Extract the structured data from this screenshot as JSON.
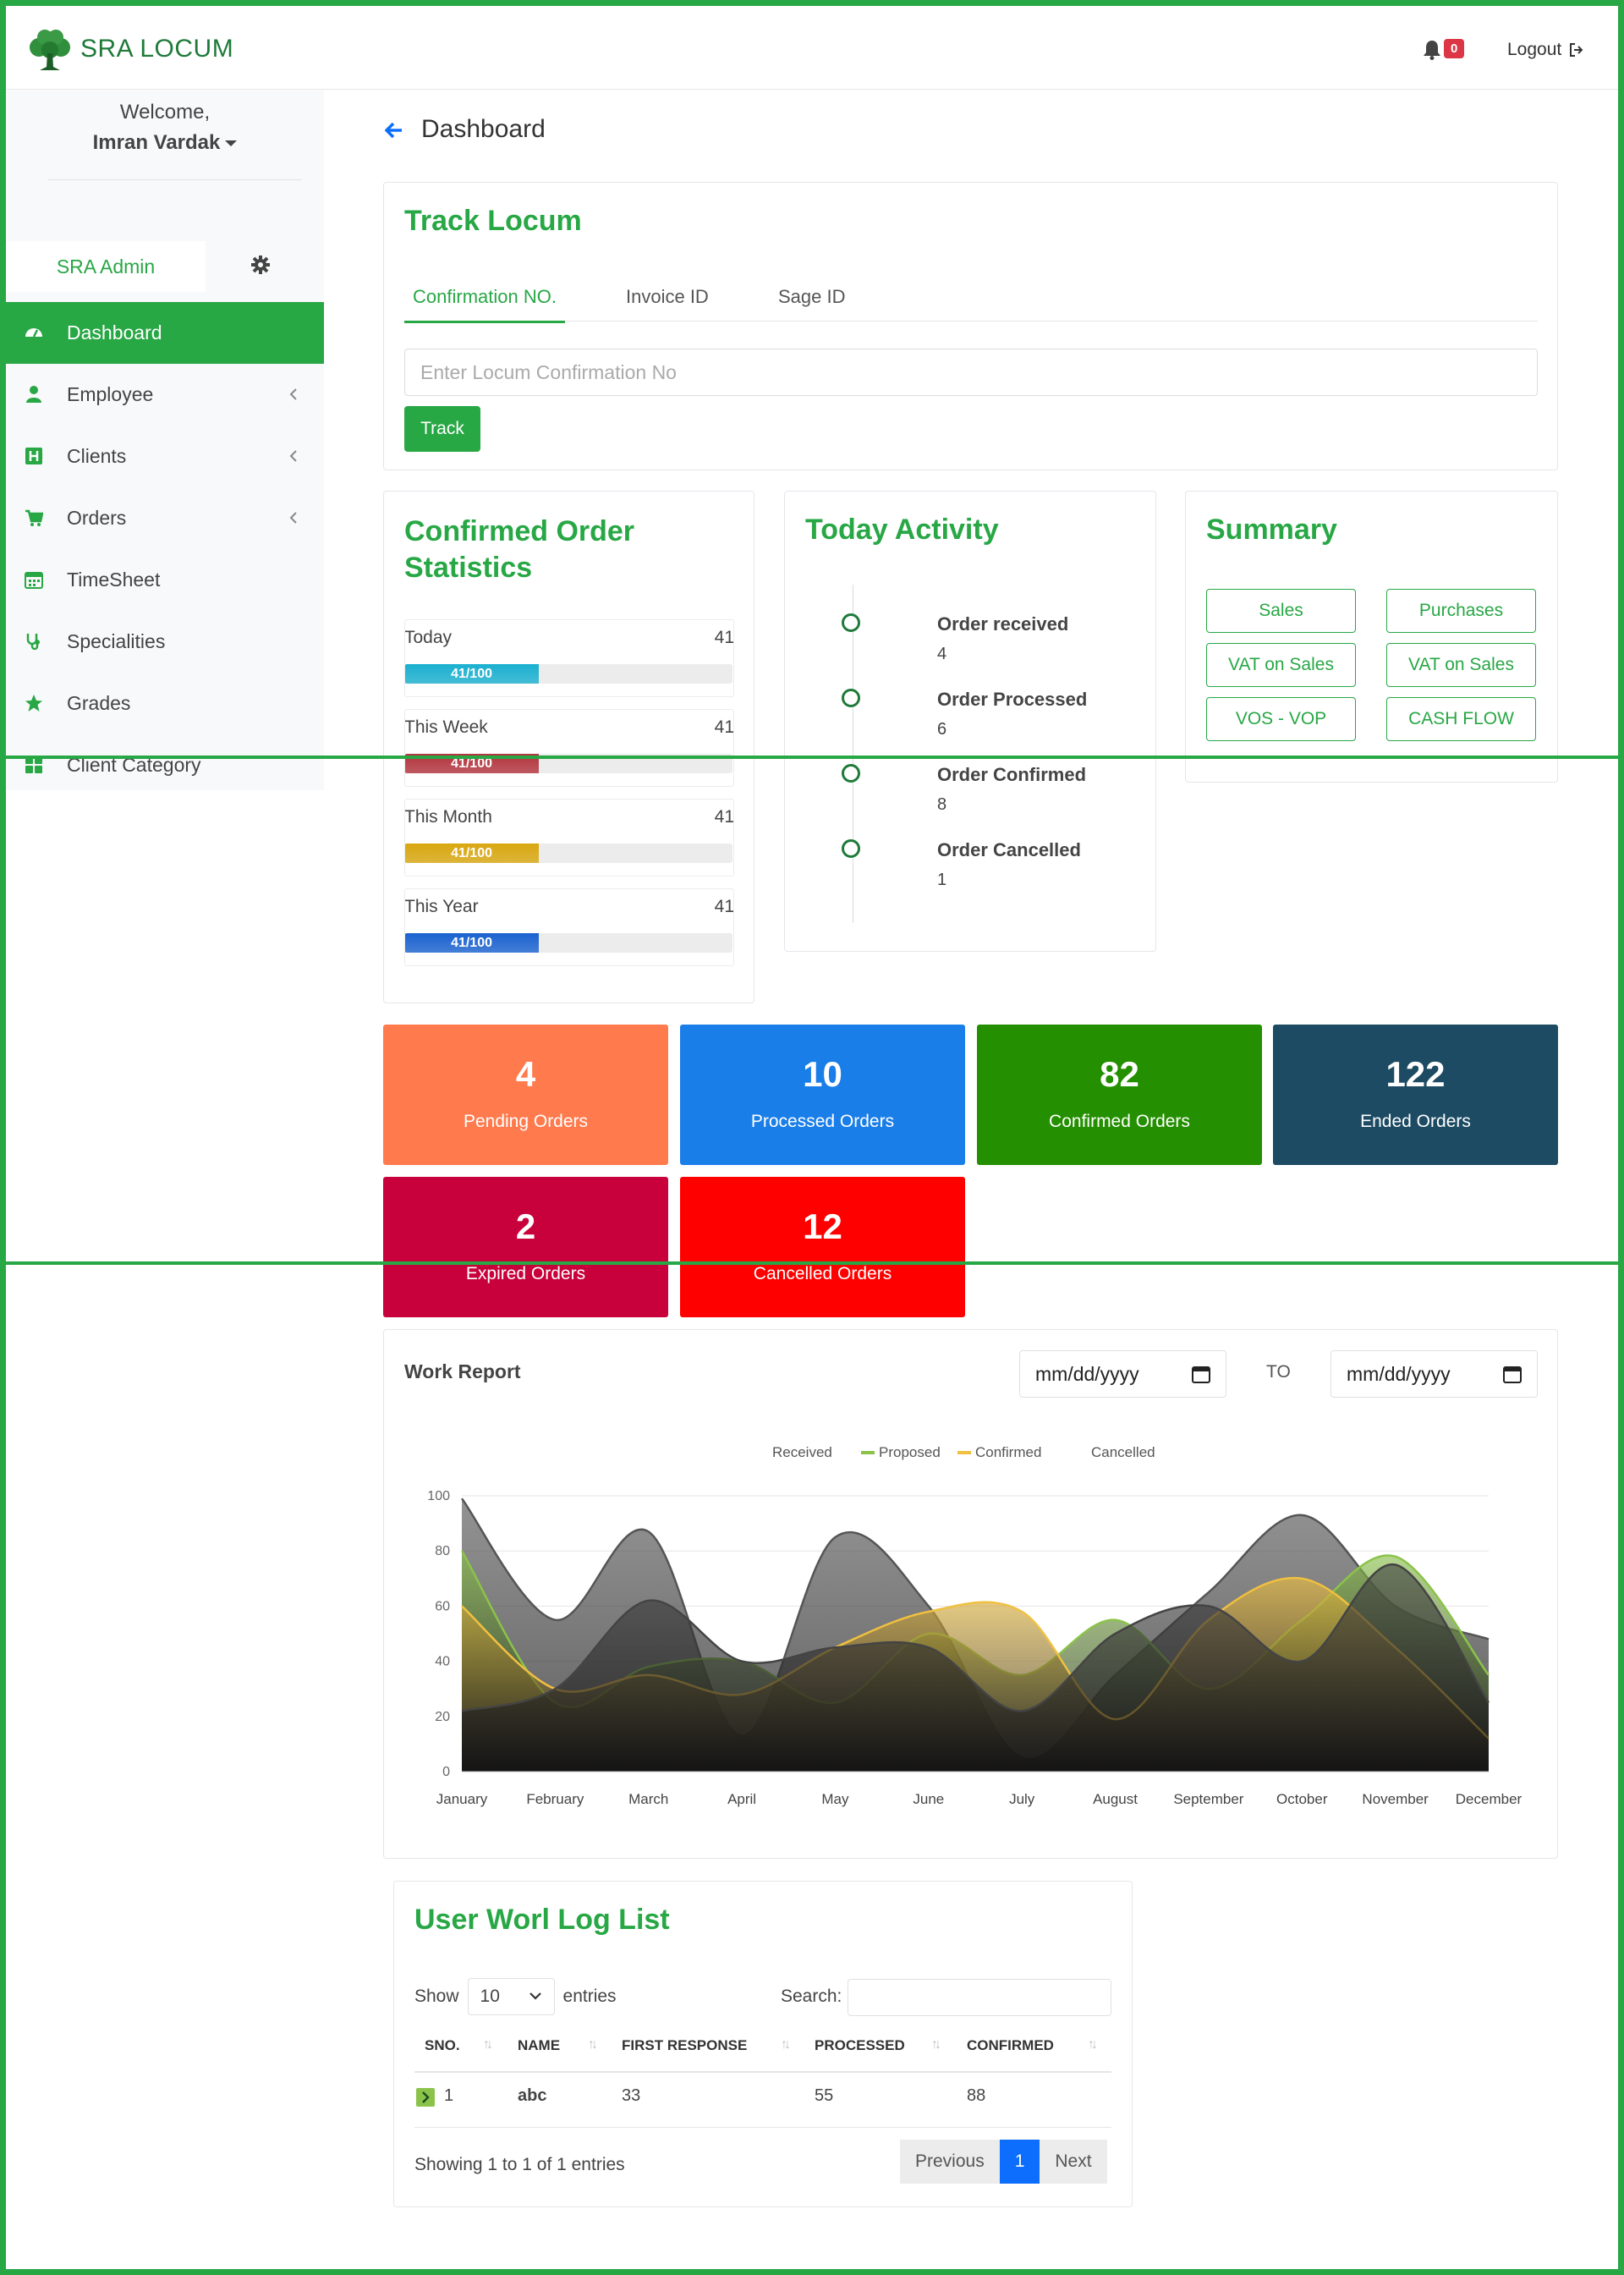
{
  "header": {
    "brand": "SRA LOCUM",
    "notification_count": "0",
    "logout_label": "Logout"
  },
  "sidebar": {
    "welcome": "Welcome,",
    "username": "Imran Vardak",
    "admin_tab": "SRA Admin",
    "items": [
      {
        "label": "Dashboard",
        "icon": "tachometer-icon",
        "active": true
      },
      {
        "label": "Employee",
        "icon": "users-icon",
        "submenu": true
      },
      {
        "label": "Clients",
        "icon": "hospital-icon",
        "submenu": true
      },
      {
        "label": "Orders",
        "icon": "cart-icon",
        "submenu": true
      },
      {
        "label": "TimeSheet",
        "icon": "calendar-icon"
      },
      {
        "label": "Specialities",
        "icon": "stethoscope-icon"
      },
      {
        "label": "Grades",
        "icon": "star-icon"
      },
      {
        "label": "Client Category",
        "icon": "grid-icon"
      }
    ]
  },
  "page": {
    "title": "Dashboard"
  },
  "track": {
    "title": "Track Locum",
    "tabs": [
      "Confirmation NO.",
      "Invoice ID",
      "Sage ID"
    ],
    "placeholder": "Enter Locum Confirmation No",
    "button": "Track"
  },
  "stats": {
    "title": "Confirmed Order Statistics",
    "rows": [
      {
        "label": "Today",
        "value": "41",
        "bar_text": "41/100",
        "progress": 0.41,
        "color": "#1ab0d0"
      },
      {
        "label": "This Week",
        "value": "41",
        "bar_text": "41/100",
        "progress": 0.41,
        "color": "#b3343d"
      },
      {
        "label": "This Month",
        "value": "41",
        "bar_text": "41/100",
        "progress": 0.41,
        "color": "#d9a70f"
      },
      {
        "label": "This Year",
        "value": "41",
        "bar_text": "41/100",
        "progress": 0.41,
        "color": "#1a62d0"
      }
    ]
  },
  "activity": {
    "title": "Today Activity",
    "items": [
      {
        "title": "Order received",
        "count": "4"
      },
      {
        "title": "Order Processed",
        "count": "6"
      },
      {
        "title": "Order Confirmed",
        "count": "8"
      },
      {
        "title": "Order Cancelled",
        "count": "1"
      }
    ]
  },
  "summary": {
    "title": "Summary",
    "buttons": [
      "Sales",
      "Purchases",
      "VAT on Sales",
      "VAT on Sales",
      "VOS - VOP",
      "CASH FLOW"
    ]
  },
  "tiles": [
    {
      "value": "4",
      "label": "Pending Orders",
      "color": "#ff7a4d"
    },
    {
      "value": "10",
      "label": "Processed Orders",
      "color": "#1a7ee8"
    },
    {
      "value": "82",
      "label": "Confirmed Orders",
      "color": "#248f00"
    },
    {
      "value": "122",
      "label": "Ended Orders",
      "color": "#1d4b63"
    },
    {
      "value": "2",
      "label": "Expired Orders",
      "color": "#c8003b"
    },
    {
      "value": "12",
      "label": "Cancelled Orders",
      "color": "#ff0000"
    }
  ],
  "work_report": {
    "title": "Work Report",
    "date_placeholder": "mm/dd/yyyy",
    "to_label": "TO"
  },
  "chart_data": {
    "type": "area",
    "categories": [
      "January",
      "February",
      "March",
      "April",
      "May",
      "June",
      "July",
      "August",
      "September",
      "October",
      "November",
      "December"
    ],
    "ylim": [
      0,
      100
    ],
    "yticks": [
      0,
      20,
      40,
      60,
      80,
      100
    ],
    "legend_position": "top",
    "series": [
      {
        "name": "Received",
        "color": "#555555",
        "values": [
          99,
          55,
          87,
          13,
          85,
          60,
          5,
          35,
          65,
          93,
          60,
          48
        ]
      },
      {
        "name": "Proposed",
        "color": "#8bc34a",
        "values": [
          80,
          25,
          38,
          40,
          25,
          50,
          35,
          55,
          30,
          55,
          78,
          35
        ]
      },
      {
        "name": "Confirmed",
        "color": "#f0c040",
        "values": [
          60,
          30,
          35,
          28,
          45,
          58,
          58,
          19,
          55,
          70,
          45,
          12
        ]
      },
      {
        "name": "Cancelled",
        "color": "#444444",
        "values": [
          22,
          30,
          62,
          40,
          45,
          45,
          22,
          50,
          60,
          40,
          75,
          25
        ]
      }
    ]
  },
  "log": {
    "title": "User Worl Log List",
    "show": "Show",
    "entries_value": "10",
    "entries": "entries",
    "search_label": "Search:",
    "columns": [
      "SNO.",
      "NAME",
      "FIRST RESPONSE",
      "PROCESSED",
      "CONFIRMED"
    ],
    "rows": [
      {
        "sno": "1",
        "name": "abc",
        "first_response": "33",
        "processed": "55",
        "confirmed": "88"
      }
    ],
    "showing": "Showing 1 to 1 of 1 entries",
    "prev": "Previous",
    "page": "1",
    "next": "Next"
  }
}
